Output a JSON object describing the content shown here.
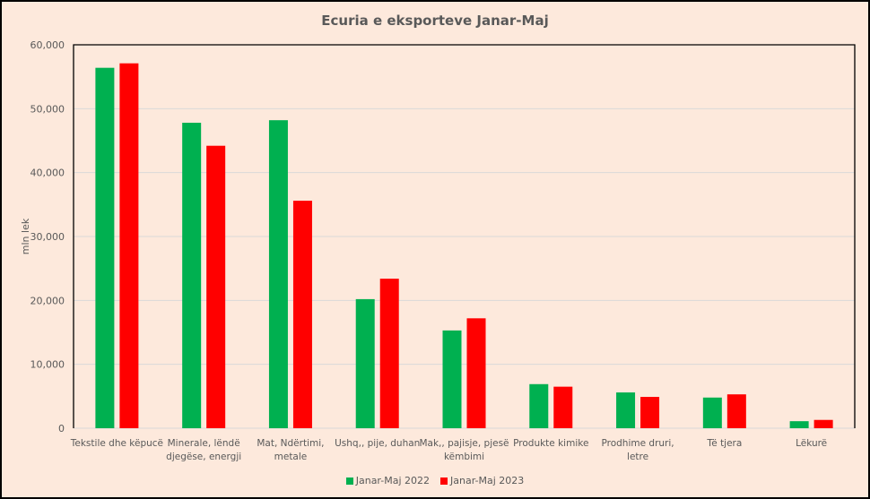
{
  "chart_data": {
    "type": "bar",
    "title": "Ecuria e eksporteve Janar-Maj",
    "xlabel": "",
    "ylabel": "mln lek",
    "ylim": [
      0,
      60000
    ],
    "yticks": [
      "0",
      "10,000",
      "20,000",
      "30,000",
      "40,000",
      "50,000",
      "60,000"
    ],
    "grid": true,
    "legend_position": "bottom",
    "categories": [
      [
        "Tekstile dhe këpucë"
      ],
      [
        "Minerale, lëndë",
        "djegëse, energji"
      ],
      [
        "Mat, Ndërtimi,",
        "metale"
      ],
      [
        "Ushq,, pije, duhan"
      ],
      [
        "Mak,, pajisje, pjesë",
        "këmbimi"
      ],
      [
        "Produkte kimike"
      ],
      [
        "Prodhime druri,",
        "letre"
      ],
      [
        "Të tjera"
      ],
      [
        "Lëkurë"
      ]
    ],
    "series": [
      {
        "name": "Janar-Maj 2022",
        "color": "#00b050",
        "values": [
          56400,
          47800,
          48200,
          20200,
          15300,
          6900,
          5600,
          4800,
          1100
        ]
      },
      {
        "name": "Janar-Maj 2023",
        "color": "#ff0000",
        "values": [
          57100,
          44200,
          35600,
          23400,
          17200,
          6500,
          4900,
          5300,
          1300
        ]
      }
    ]
  }
}
